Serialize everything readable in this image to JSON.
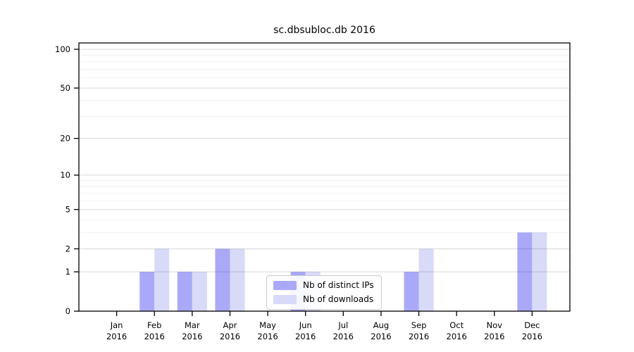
{
  "chart_data": {
    "type": "bar",
    "title": "sc.dbsubloc.db 2016",
    "x_tick_labels": [
      {
        "month": "Jan",
        "year": "2016"
      },
      {
        "month": "Feb",
        "year": "2016"
      },
      {
        "month": "Mar",
        "year": "2016"
      },
      {
        "month": "Apr",
        "year": "2016"
      },
      {
        "month": "May",
        "year": "2016"
      },
      {
        "month": "Jun",
        "year": "2016"
      },
      {
        "month": "Jul",
        "year": "2016"
      },
      {
        "month": "Aug",
        "year": "2016"
      },
      {
        "month": "Sep",
        "year": "2016"
      },
      {
        "month": "Oct",
        "year": "2016"
      },
      {
        "month": "Nov",
        "year": "2016"
      },
      {
        "month": "Dec",
        "year": "2016"
      }
    ],
    "series": [
      {
        "name": "Nb of distinct IPs",
        "color": "#a9a9f8",
        "values": [
          0,
          1,
          1,
          2,
          0,
          1,
          0,
          0,
          1,
          0,
          0,
          3
        ]
      },
      {
        "name": "Nb of downloads",
        "color": "#d9d9f8",
        "values": [
          0,
          2,
          1,
          2,
          0,
          1,
          0,
          0,
          2,
          0,
          0,
          3
        ]
      }
    ],
    "y_axis": {
      "scale": "log1p",
      "major_ticks": [
        0,
        1,
        2,
        5,
        10,
        20,
        50,
        100
      ],
      "minor_ticks": [
        3,
        4,
        6,
        7,
        8,
        9,
        30,
        40,
        60,
        70,
        80,
        90
      ],
      "ylim": [
        0,
        110
      ]
    },
    "legend": {
      "position": "lower center"
    },
    "grid": {
      "major": true,
      "minor": true,
      "grid_above_bars": true
    },
    "colors": {
      "major_grid": "rgba(0,0,0,0.15)",
      "minor_grid": "rgba(0,0,0,0.06)",
      "spine": "#000000"
    }
  }
}
